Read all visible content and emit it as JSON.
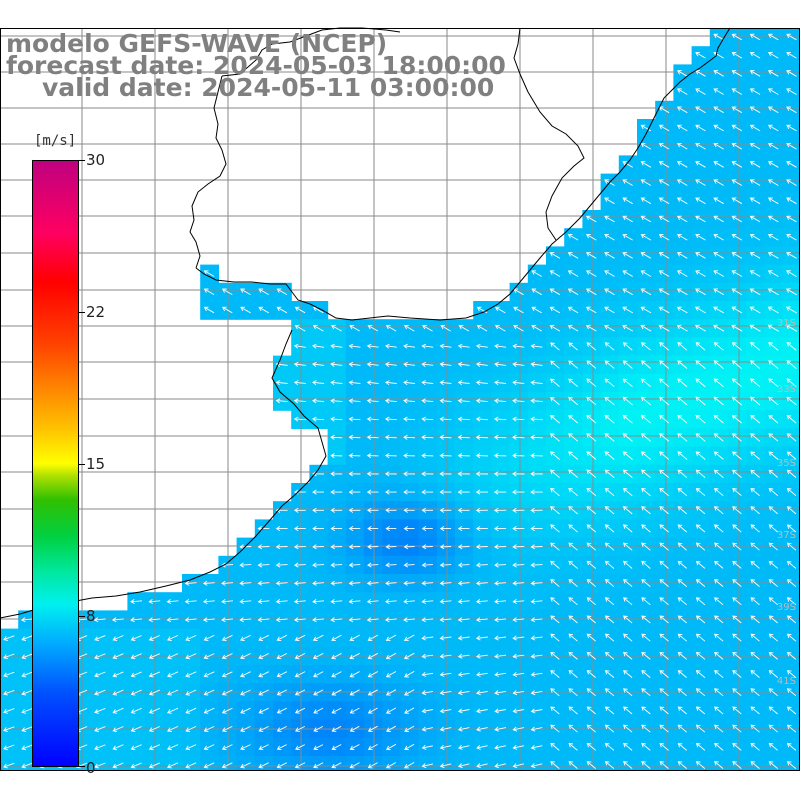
{
  "header": {
    "model": "modelo GEFS-WAVE (NCEP)",
    "forecast": "forecast date: 2024-05-03 18:00:00",
    "valid": "valid date: 2024-05-11 03:00:00"
  },
  "colorbar": {
    "unit": "[m/s]",
    "min": 0,
    "max": 30,
    "ticks": [
      "30",
      "22",
      "15",
      "8",
      "0"
    ]
  },
  "lat_labels": [
    "31S",
    "33S",
    "35S",
    "37S",
    "39S",
    "41S"
  ],
  "colors": {
    "land": "#ffffff",
    "grid": "#909090",
    "coast": "#000000",
    "arrow": "#ffffff",
    "title": "#808080"
  }
}
